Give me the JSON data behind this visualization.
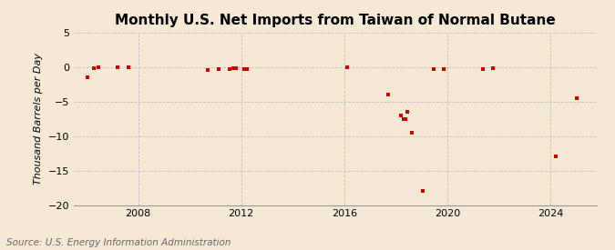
{
  "title": "Monthly U.S. Net Imports from Taiwan of Normal Butane",
  "ylabel": "Thousand Barrels per Day",
  "source": "Source: U.S. Energy Information Administration",
  "background_color": "#f5e9d5",
  "plot_bg_color": "#f5e9d5",
  "data_points": [
    {
      "year": 2006,
      "month": 1,
      "value": -1.5
    },
    {
      "year": 2006,
      "month": 4,
      "value": -0.2
    },
    {
      "year": 2006,
      "month": 6,
      "value": -0.1
    },
    {
      "year": 2007,
      "month": 3,
      "value": -0.1
    },
    {
      "year": 2007,
      "month": 8,
      "value": -0.1
    },
    {
      "year": 2010,
      "month": 9,
      "value": -0.5
    },
    {
      "year": 2011,
      "month": 2,
      "value": -0.3
    },
    {
      "year": 2011,
      "month": 7,
      "value": -0.3
    },
    {
      "year": 2011,
      "month": 9,
      "value": -0.2
    },
    {
      "year": 2011,
      "month": 10,
      "value": -0.2
    },
    {
      "year": 2012,
      "month": 2,
      "value": -0.3
    },
    {
      "year": 2012,
      "month": 3,
      "value": -0.3
    },
    {
      "year": 2016,
      "month": 2,
      "value": -0.1
    },
    {
      "year": 2017,
      "month": 9,
      "value": -4.0
    },
    {
      "year": 2018,
      "month": 3,
      "value": -7.0
    },
    {
      "year": 2018,
      "month": 4,
      "value": -7.5
    },
    {
      "year": 2018,
      "month": 5,
      "value": -7.5
    },
    {
      "year": 2018,
      "month": 6,
      "value": -6.5
    },
    {
      "year": 2018,
      "month": 8,
      "value": -9.5
    },
    {
      "year": 2019,
      "month": 1,
      "value": -18.0
    },
    {
      "year": 2019,
      "month": 6,
      "value": -0.3
    },
    {
      "year": 2019,
      "month": 11,
      "value": -0.3
    },
    {
      "year": 2021,
      "month": 5,
      "value": -0.3
    },
    {
      "year": 2021,
      "month": 10,
      "value": -0.2
    },
    {
      "year": 2024,
      "month": 3,
      "value": -13.0
    },
    {
      "year": 2025,
      "month": 1,
      "value": -4.5
    }
  ],
  "xlim": [
    2005.5,
    2025.8
  ],
  "ylim": [
    -20,
    5
  ],
  "yticks": [
    5,
    0,
    -5,
    -10,
    -15,
    -20
  ],
  "xticks": [
    2008,
    2012,
    2016,
    2020,
    2024
  ],
  "marker_color": "#cc0000",
  "marker_size": 3.5,
  "grid_color": "#bbbbbb",
  "title_fontsize": 11,
  "label_fontsize": 8,
  "tick_fontsize": 8,
  "source_fontsize": 7.5
}
